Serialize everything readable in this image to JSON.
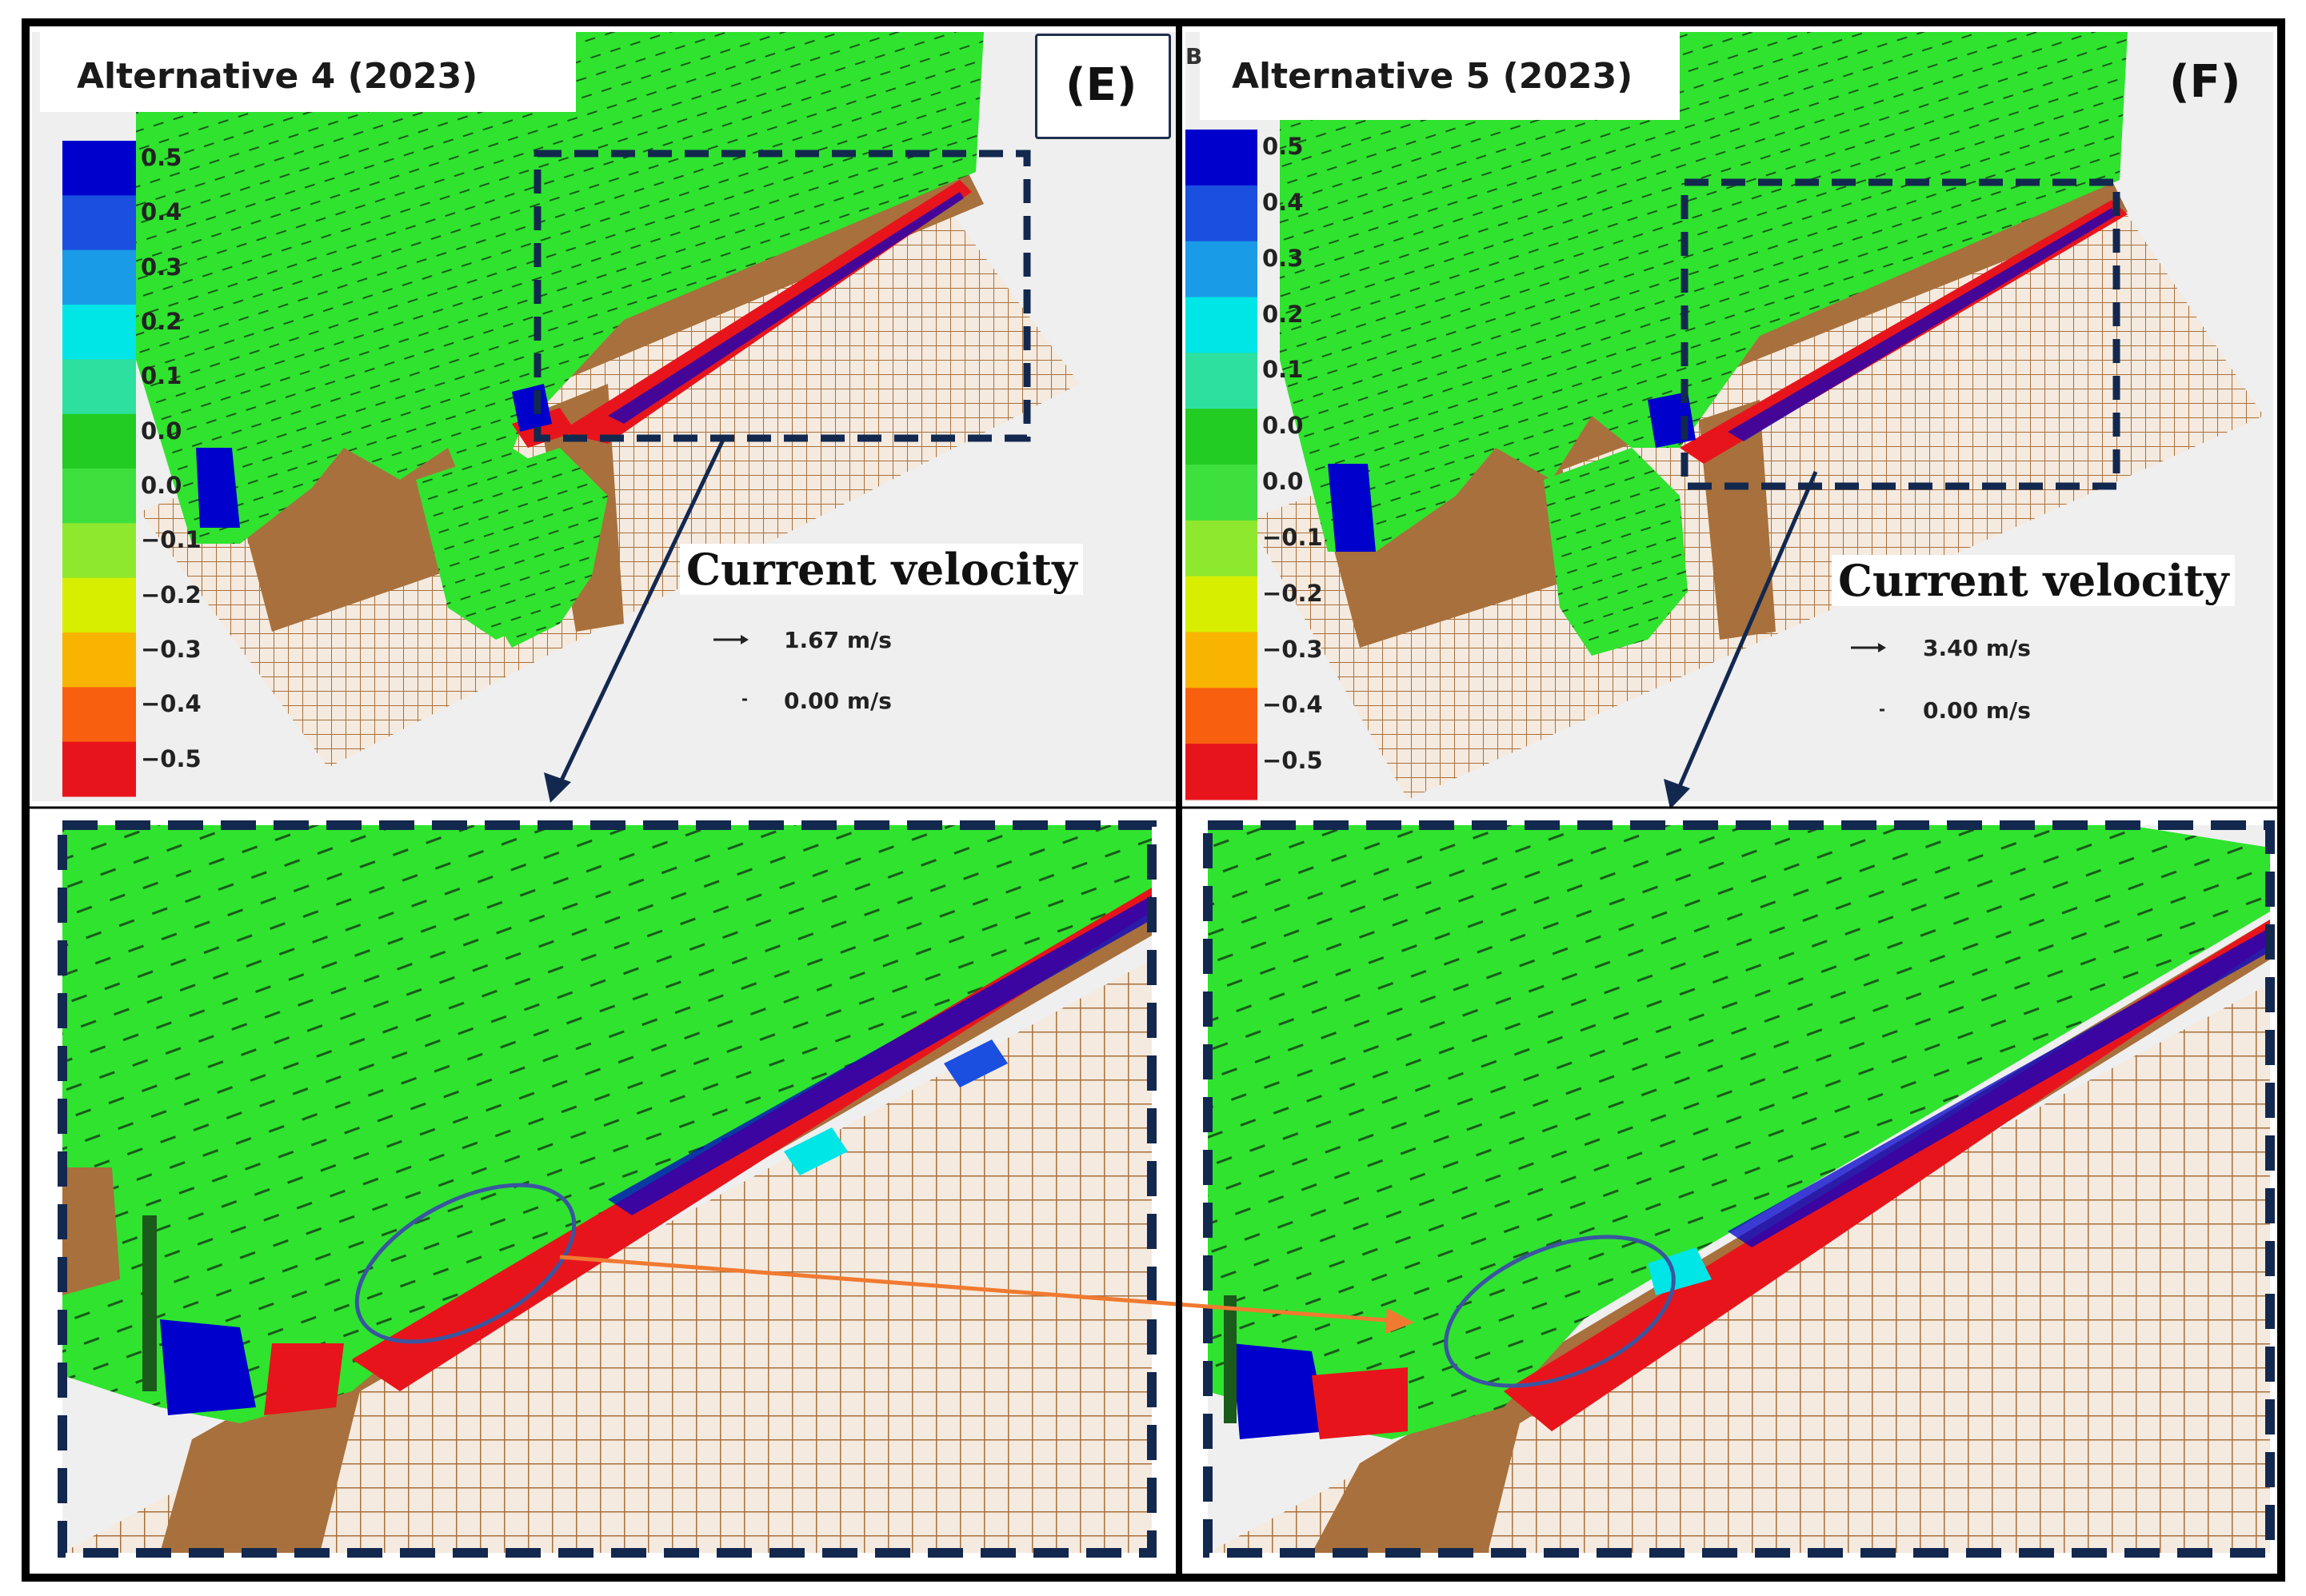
{
  "panels": {
    "E": {
      "title": "Alternative 4 (2023)",
      "label": "(E)",
      "legend_title": "Current velocity",
      "scale_arrow_speed": "1.67 m/s",
      "scale_zero_speed": "0.00 m/s"
    },
    "F": {
      "title": "Alternative 5 (2023)",
      "label": "(F)",
      "legend_title": "Current velocity",
      "scale_arrow_speed": "3.40 m/s",
      "scale_zero_speed": "0.00 m/s",
      "corner_fragment": "B"
    }
  },
  "colorbar": {
    "labels_E": [
      "0.5",
      "0.4",
      "0.3",
      "0.2",
      "0.1",
      "0.0",
      "0.0",
      "−0.1",
      "−0.2",
      "−0.3",
      "−0.4",
      "−0.5"
    ],
    "labels_F": [
      "0.5",
      "0.4",
      "0.3",
      "0.2",
      "0.1",
      "0.0",
      "0.0",
      "−0.1",
      "−0.2",
      "−0.3",
      "−0.4",
      "−0.5"
    ],
    "colors": [
      "#0000cc",
      "#1a4fe0",
      "#1a9be8",
      "#00e5e5",
      "#2de0a0",
      "#22cc22",
      "#3ee03e",
      "#8ee82e",
      "#d8ee00",
      "#f8b400",
      "#f86010",
      "#e8141c"
    ]
  },
  "colors": {
    "flow_green": "#2fe32f",
    "land_brown": "#a8703c",
    "grid_line": "#b07a47",
    "background": "#efefef",
    "dashed_box": "#13284f",
    "pointer_arrow": "#13284f",
    "compare_arrow": "#f07a30",
    "ellipse": "#3a55a0",
    "frame": "#000000"
  }
}
